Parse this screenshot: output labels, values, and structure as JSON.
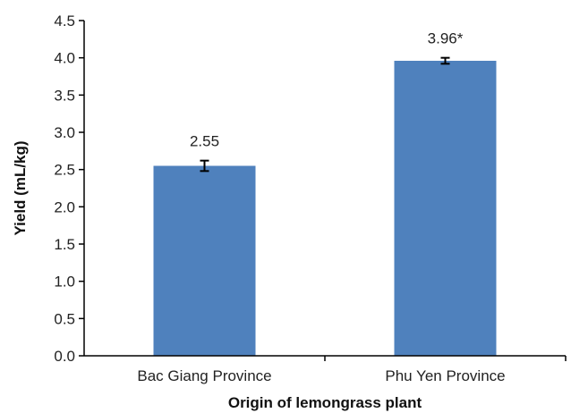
{
  "chart_data": {
    "type": "bar",
    "title": "",
    "xlabel": "Origin of lemongrass plant",
    "ylabel": "Yield (mL/kg)",
    "ylim": [
      0,
      4.5
    ],
    "yticks": [
      "0.0",
      "0.5",
      "1.0",
      "1.5",
      "2.0",
      "2.5",
      "3.0",
      "3.5",
      "4.0",
      "4.5"
    ],
    "categories": [
      "Bac Giang Province",
      "Phu Yen Province"
    ],
    "values": [
      2.55,
      3.96
    ],
    "error": [
      0.07,
      0.04
    ],
    "data_labels": [
      "2.55",
      "3.96*"
    ],
    "grid": false,
    "colors": {
      "bar": "#4f81bd",
      "axis": "#000000",
      "error": "#000000"
    }
  }
}
